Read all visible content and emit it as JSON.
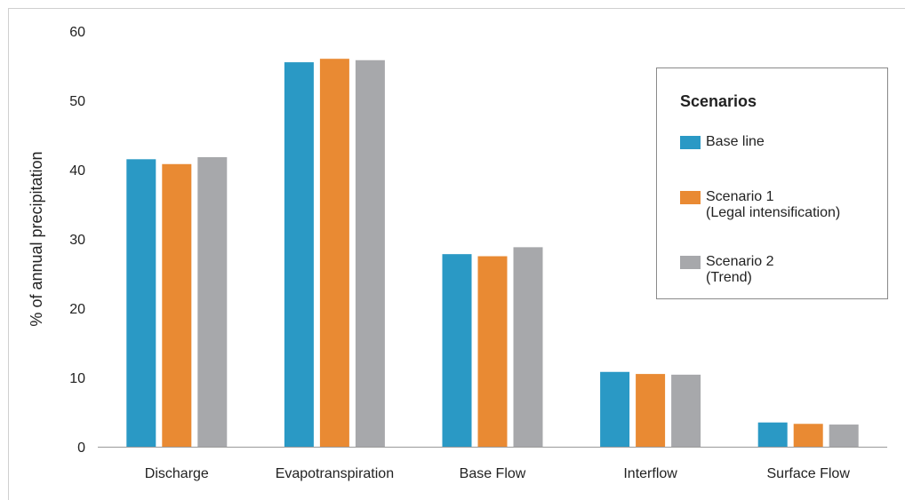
{
  "chart_data": {
    "type": "bar",
    "title": "",
    "xlabel": "",
    "ylabel": "% of annual precipitation",
    "ylim": [
      0,
      60
    ],
    "yticks": [
      0,
      10,
      20,
      30,
      40,
      50,
      60
    ],
    "grid": false,
    "legend_position": "right",
    "categories": [
      "Discharge",
      "Evapotranspiration",
      "Base Flow",
      "Interflow",
      "Surface Flow"
    ],
    "series": [
      {
        "name": "Base line",
        "color": "#2a99c5",
        "values": [
          41.5,
          55.5,
          27.8,
          10.8,
          3.5
        ]
      },
      {
        "name": "Scenario 1\n(Legal intensification)",
        "color": "#e98a33",
        "values": [
          40.8,
          56.0,
          27.5,
          10.5,
          3.3
        ]
      },
      {
        "name": "Scenario 2\n(Trend)",
        "color": "#a7a8ab",
        "values": [
          41.8,
          55.8,
          28.8,
          10.4,
          3.2
        ]
      }
    ]
  },
  "legend": {
    "title": "Scenarios"
  }
}
